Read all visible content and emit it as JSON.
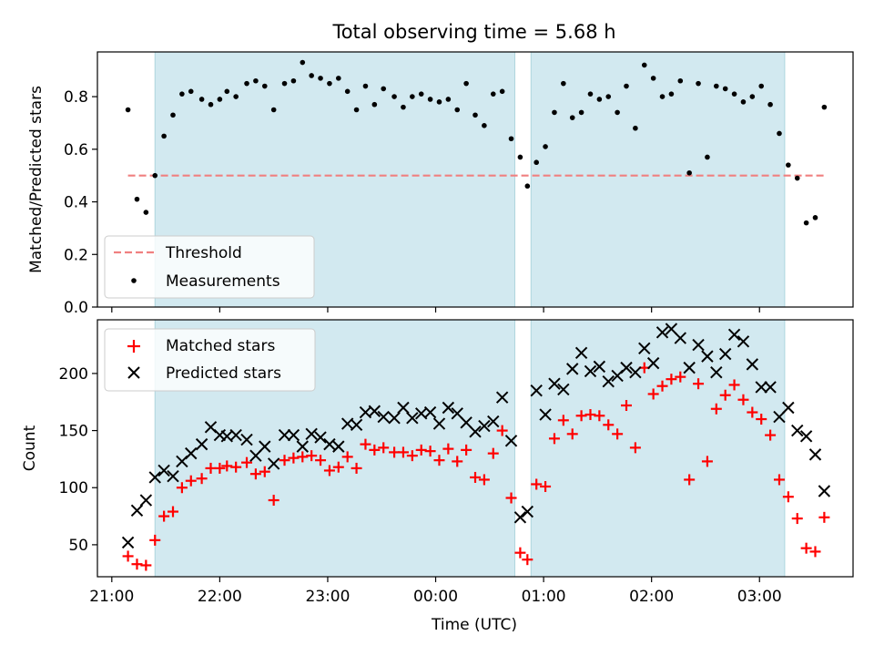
{
  "chart_data": [
    {
      "type": "scatter",
      "title": "Total observing time = 5.68 h",
      "xlabel": "",
      "ylabel": "Matched/Predicted stars",
      "xlim": [
        "20:52",
        "03:52"
      ],
      "ylim": [
        0,
        0.97
      ],
      "yticks": [
        0.0,
        0.2,
        0.4,
        0.6,
        0.8
      ],
      "ytick_labels": [
        "0.0",
        "0.2",
        "0.4",
        "0.6",
        "0.8"
      ],
      "shaded_intervals": [
        [
          "21:24",
          "00:44"
        ],
        [
          "00:53",
          "03:14"
        ]
      ],
      "threshold": {
        "value": 0.5,
        "x_range": [
          "21:09",
          "03:36"
        ],
        "color": "#f08080",
        "label": "Threshold"
      },
      "legend": {
        "position": "lower-left",
        "entries": [
          "Threshold",
          "Measurements"
        ]
      },
      "series": [
        {
          "name": "Measurements",
          "marker": "dot",
          "color": "#000000",
          "points": [
            [
              "21:09",
              0.75
            ],
            [
              "21:14",
              0.41
            ],
            [
              "21:19",
              0.36
            ],
            [
              "21:24",
              0.5
            ],
            [
              "21:29",
              0.65
            ],
            [
              "21:34",
              0.73
            ],
            [
              "21:39",
              0.81
            ],
            [
              "21:44",
              0.82
            ],
            [
              "21:50",
              0.79
            ],
            [
              "21:55",
              0.77
            ],
            [
              "22:00",
              0.79
            ],
            [
              "22:04",
              0.82
            ],
            [
              "22:09",
              0.8
            ],
            [
              "22:15",
              0.85
            ],
            [
              "22:20",
              0.86
            ],
            [
              "22:25",
              0.84
            ],
            [
              "22:30",
              0.75
            ],
            [
              "22:36",
              0.85
            ],
            [
              "22:41",
              0.86
            ],
            [
              "22:46",
              0.93
            ],
            [
              "22:51",
              0.88
            ],
            [
              "22:56",
              0.87
            ],
            [
              "23:01",
              0.85
            ],
            [
              "23:06",
              0.87
            ],
            [
              "23:11",
              0.82
            ],
            [
              "23:16",
              0.75
            ],
            [
              "23:21",
              0.84
            ],
            [
              "23:26",
              0.77
            ],
            [
              "23:31",
              0.83
            ],
            [
              "23:37",
              0.8
            ],
            [
              "23:42",
              0.76
            ],
            [
              "23:47",
              0.8
            ],
            [
              "23:52",
              0.81
            ],
            [
              "23:57",
              0.79
            ],
            [
              "00:02",
              0.78
            ],
            [
              "00:07",
              0.79
            ],
            [
              "00:12",
              0.75
            ],
            [
              "00:17",
              0.85
            ],
            [
              "00:22",
              0.73
            ],
            [
              "00:27",
              0.69
            ],
            [
              "00:32",
              0.81
            ],
            [
              "00:37",
              0.82
            ],
            [
              "00:42",
              0.64
            ],
            [
              "00:47",
              0.57
            ],
            [
              "00:51",
              0.46
            ],
            [
              "00:56",
              0.55
            ],
            [
              "01:01",
              0.61
            ],
            [
              "01:06",
              0.74
            ],
            [
              "01:11",
              0.85
            ],
            [
              "01:16",
              0.72
            ],
            [
              "01:21",
              0.74
            ],
            [
              "01:26",
              0.81
            ],
            [
              "01:31",
              0.79
            ],
            [
              "01:36",
              0.8
            ],
            [
              "01:41",
              0.74
            ],
            [
              "01:46",
              0.84
            ],
            [
              "01:51",
              0.68
            ],
            [
              "01:56",
              0.92
            ],
            [
              "02:01",
              0.87
            ],
            [
              "02:06",
              0.8
            ],
            [
              "02:11",
              0.81
            ],
            [
              "02:16",
              0.86
            ],
            [
              "02:21",
              0.51
            ],
            [
              "02:26",
              0.85
            ],
            [
              "02:31",
              0.57
            ],
            [
              "02:36",
              0.84
            ],
            [
              "02:41",
              0.83
            ],
            [
              "02:46",
              0.81
            ],
            [
              "02:51",
              0.78
            ],
            [
              "02:56",
              0.8
            ],
            [
              "03:01",
              0.84
            ],
            [
              "03:06",
              0.77
            ],
            [
              "03:11",
              0.66
            ],
            [
              "03:16",
              0.54
            ],
            [
              "03:21",
              0.49
            ],
            [
              "03:26",
              0.32
            ],
            [
              "03:31",
              0.34
            ],
            [
              "03:36",
              0.76
            ]
          ]
        }
      ]
    },
    {
      "type": "scatter",
      "title": "",
      "xlabel": "Time (UTC)",
      "ylabel": "Count",
      "xlim": [
        "20:52",
        "03:52"
      ],
      "ylim": [
        22,
        247
      ],
      "yticks": [
        50,
        100,
        150,
        200
      ],
      "ytick_labels": [
        "50",
        "100",
        "150",
        "200"
      ],
      "xticks": [
        "21:00",
        "22:00",
        "23:00",
        "00:00",
        "01:00",
        "02:00",
        "03:00"
      ],
      "xtick_labels": [
        "21:00",
        "22:00",
        "23:00",
        "00:00",
        "01:00",
        "02:00",
        "03:00"
      ],
      "shaded_intervals": [
        [
          "21:24",
          "00:44"
        ],
        [
          "00:53",
          "03:14"
        ]
      ],
      "legend": {
        "position": "top-left",
        "entries": [
          "Matched stars",
          "Predicted stars"
        ]
      },
      "series": [
        {
          "name": "Matched stars",
          "marker": "plus",
          "color": "#ff0000",
          "points": [
            [
              "21:09",
              40
            ],
            [
              "21:14",
              33
            ],
            [
              "21:19",
              32
            ],
            [
              "21:24",
              54
            ],
            [
              "21:29",
              75
            ],
            [
              "21:34",
              79
            ],
            [
              "21:39",
              100
            ],
            [
              "21:44",
              106
            ],
            [
              "21:50",
              108
            ],
            [
              "21:55",
              117
            ],
            [
              "22:00",
              117
            ],
            [
              "22:04",
              119
            ],
            [
              "22:09",
              118
            ],
            [
              "22:15",
              122
            ],
            [
              "22:20",
              112
            ],
            [
              "22:25",
              114
            ],
            [
              "22:30",
              89
            ],
            [
              "22:36",
              124
            ],
            [
              "22:41",
              126
            ],
            [
              "22:46",
              127
            ],
            [
              "22:51",
              128
            ],
            [
              "22:56",
              124
            ],
            [
              "23:01",
              115
            ],
            [
              "23:06",
              118
            ],
            [
              "23:11",
              127
            ],
            [
              "23:16",
              117
            ],
            [
              "23:21",
              138
            ],
            [
              "23:26",
              133
            ],
            [
              "23:31",
              135
            ],
            [
              "23:37",
              131
            ],
            [
              "23:42",
              131
            ],
            [
              "23:47",
              128
            ],
            [
              "23:52",
              133
            ],
            [
              "23:57",
              132
            ],
            [
              "00:02",
              124
            ],
            [
              "00:07",
              134
            ],
            [
              "00:12",
              123
            ],
            [
              "00:17",
              133
            ],
            [
              "00:22",
              109
            ],
            [
              "00:27",
              107
            ],
            [
              "00:32",
              130
            ],
            [
              "00:37",
              150
            ],
            [
              "00:42",
              91
            ],
            [
              "00:47",
              43
            ],
            [
              "00:51",
              37
            ],
            [
              "00:56",
              103
            ],
            [
              "01:01",
              101
            ],
            [
              "01:06",
              143
            ],
            [
              "01:11",
              159
            ],
            [
              "01:16",
              147
            ],
            [
              "01:21",
              163
            ],
            [
              "01:26",
              164
            ],
            [
              "01:31",
              163
            ],
            [
              "01:36",
              155
            ],
            [
              "01:41",
              147
            ],
            [
              "01:46",
              172
            ],
            [
              "01:51",
              135
            ],
            [
              "01:56",
              205
            ],
            [
              "02:01",
              182
            ],
            [
              "02:06",
              189
            ],
            [
              "02:11",
              195
            ],
            [
              "02:16",
              197
            ],
            [
              "02:21",
              107
            ],
            [
              "02:26",
              191
            ],
            [
              "02:31",
              123
            ],
            [
              "02:36",
              169
            ],
            [
              "02:41",
              181
            ],
            [
              "02:46",
              190
            ],
            [
              "02:51",
              177
            ],
            [
              "02:56",
              166
            ],
            [
              "03:01",
              160
            ],
            [
              "03:06",
              146
            ],
            [
              "03:11",
              107
            ],
            [
              "03:16",
              92
            ],
            [
              "03:21",
              73
            ],
            [
              "03:26",
              47
            ],
            [
              "03:31",
              44
            ],
            [
              "03:36",
              74
            ]
          ]
        },
        {
          "name": "Predicted stars",
          "marker": "x",
          "color": "#000000",
          "points": [
            [
              "21:09",
              52
            ],
            [
              "21:14",
              80
            ],
            [
              "21:19",
              89
            ],
            [
              "21:24",
              109
            ],
            [
              "21:29",
              115
            ],
            [
              "21:34",
              110
            ],
            [
              "21:39",
              123
            ],
            [
              "21:44",
              130
            ],
            [
              "21:50",
              138
            ],
            [
              "21:55",
              153
            ],
            [
              "22:00",
              146
            ],
            [
              "22:04",
              145
            ],
            [
              "22:09",
              146
            ],
            [
              "22:15",
              142
            ],
            [
              "22:20",
              128
            ],
            [
              "22:25",
              136
            ],
            [
              "22:30",
              121
            ],
            [
              "22:36",
              146
            ],
            [
              "22:41",
              146
            ],
            [
              "22:46",
              136
            ],
            [
              "22:51",
              147
            ],
            [
              "22:56",
              144
            ],
            [
              "23:01",
              138
            ],
            [
              "23:06",
              136
            ],
            [
              "23:11",
              156
            ],
            [
              "23:16",
              155
            ],
            [
              "23:21",
              166
            ],
            [
              "23:26",
              167
            ],
            [
              "23:31",
              162
            ],
            [
              "23:37",
              161
            ],
            [
              "23:42",
              170
            ],
            [
              "23:47",
              161
            ],
            [
              "23:52",
              165
            ],
            [
              "23:57",
              166
            ],
            [
              "00:02",
              156
            ],
            [
              "00:07",
              170
            ],
            [
              "00:12",
              165
            ],
            [
              "00:17",
              157
            ],
            [
              "00:22",
              149
            ],
            [
              "00:27",
              154
            ],
            [
              "00:32",
              158
            ],
            [
              "00:37",
              179
            ],
            [
              "00:42",
              141
            ],
            [
              "00:47",
              74
            ],
            [
              "00:51",
              79
            ],
            [
              "00:56",
              185
            ],
            [
              "01:01",
              164
            ],
            [
              "01:06",
              191
            ],
            [
              "01:11",
              186
            ],
            [
              "01:16",
              204
            ],
            [
              "01:21",
              218
            ],
            [
              "01:26",
              202
            ],
            [
              "01:31",
              206
            ],
            [
              "01:36",
              193
            ],
            [
              "01:41",
              198
            ],
            [
              "01:46",
              205
            ],
            [
              "01:51",
              201
            ],
            [
              "01:56",
              222
            ],
            [
              "02:01",
              209
            ],
            [
              "02:06",
              236
            ],
            [
              "02:11",
              239
            ],
            [
              "02:16",
              231
            ],
            [
              "02:21",
              205
            ],
            [
              "02:26",
              225
            ],
            [
              "02:31",
              215
            ],
            [
              "02:36",
              201
            ],
            [
              "02:41",
              217
            ],
            [
              "02:46",
              234
            ],
            [
              "02:51",
              228
            ],
            [
              "02:56",
              208
            ],
            [
              "03:01",
              188
            ],
            [
              "03:06",
              188
            ],
            [
              "03:11",
              162
            ],
            [
              "03:16",
              170
            ],
            [
              "03:21",
              150
            ],
            [
              "03:26",
              145
            ],
            [
              "03:31",
              129
            ],
            [
              "03:36",
              97
            ]
          ]
        }
      ]
    }
  ],
  "colors": {
    "shade": "#d2e9f0",
    "shade_edge": "#aed6de",
    "threshold": "#f08080",
    "matched": "#ff0000",
    "predicted": "#000000",
    "measurements": "#000000"
  }
}
